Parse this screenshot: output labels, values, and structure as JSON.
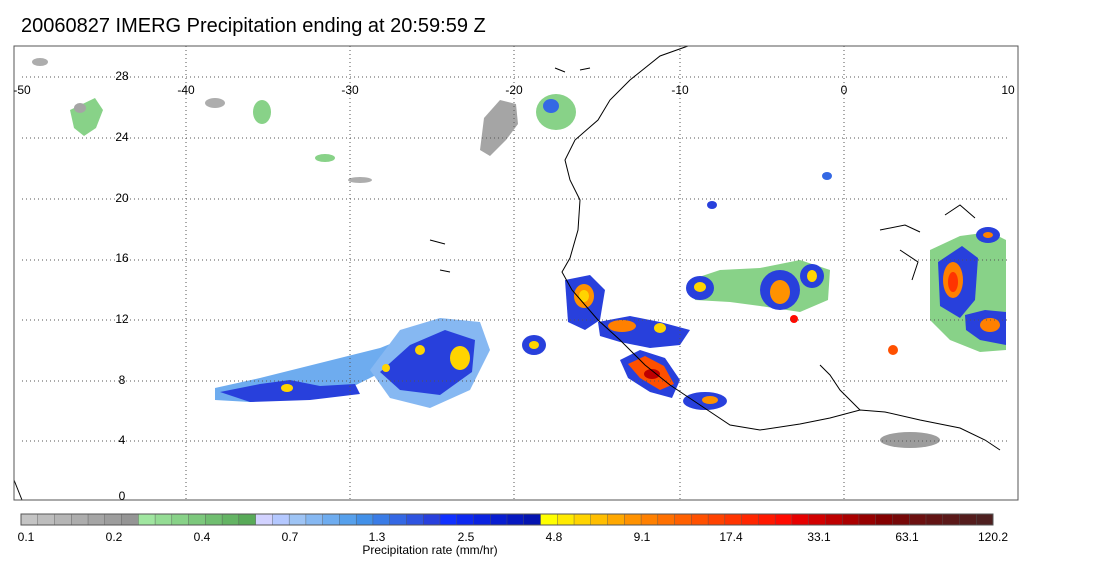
{
  "title": "20060827 IMERG Precipitation ending at 20:59:59 Z",
  "map": {
    "lon_ticks": [
      "-50",
      "-40",
      "-30",
      "-20",
      "-10",
      "0",
      "10"
    ],
    "lat_ticks": [
      "28",
      "24",
      "20",
      "16",
      "12",
      "8",
      "4",
      "0"
    ],
    "lon_range": [
      -50,
      10
    ],
    "lat_range": [
      -0.5,
      30
    ],
    "grid": "dotted",
    "colors": {
      "frame": "#555555",
      "coast": "#000000",
      "grid": "#555555"
    }
  },
  "colorbar": {
    "title": "Precipitation rate (mm/hr)",
    "tick_labels": [
      "0.1",
      "0.2",
      "0.4",
      "0.7",
      "1.3",
      "2.5",
      "4.8",
      "9.1",
      "17.4",
      "33.1",
      "63.1",
      "120.2"
    ],
    "colors": [
      "#c4c4c4",
      "#bdbdbd",
      "#b5b5b5",
      "#adadad",
      "#a5a5a5",
      "#9d9d9d",
      "#959595",
      "#a0e6a0",
      "#94dc94",
      "#88d288",
      "#7cc87c",
      "#70be70",
      "#64b464",
      "#58aa58",
      "#d2d2ff",
      "#b4c8ff",
      "#9ec4f5",
      "#86b8f2",
      "#6eacef",
      "#56a0ec",
      "#4290e8",
      "#3a7ce6",
      "#3468e4",
      "#2e54e0",
      "#2840dc",
      "#1030ff",
      "#0d28f0",
      "#0a22e0",
      "#081dd0",
      "#0618c0",
      "#0414b0",
      "#ffff00",
      "#ffea00",
      "#ffd400",
      "#ffbe00",
      "#ffa800",
      "#ff9200",
      "#ff8000",
      "#ff7000",
      "#ff6000",
      "#ff5000",
      "#ff4200",
      "#ff3400",
      "#ff2600",
      "#ff1800",
      "#ff0a00",
      "#e60000",
      "#d20000",
      "#be0000",
      "#aa0000",
      "#960000",
      "#840000",
      "#760808",
      "#6c1010",
      "#621414",
      "#5a1818",
      "#541c1c",
      "#4e2020"
    ]
  }
}
